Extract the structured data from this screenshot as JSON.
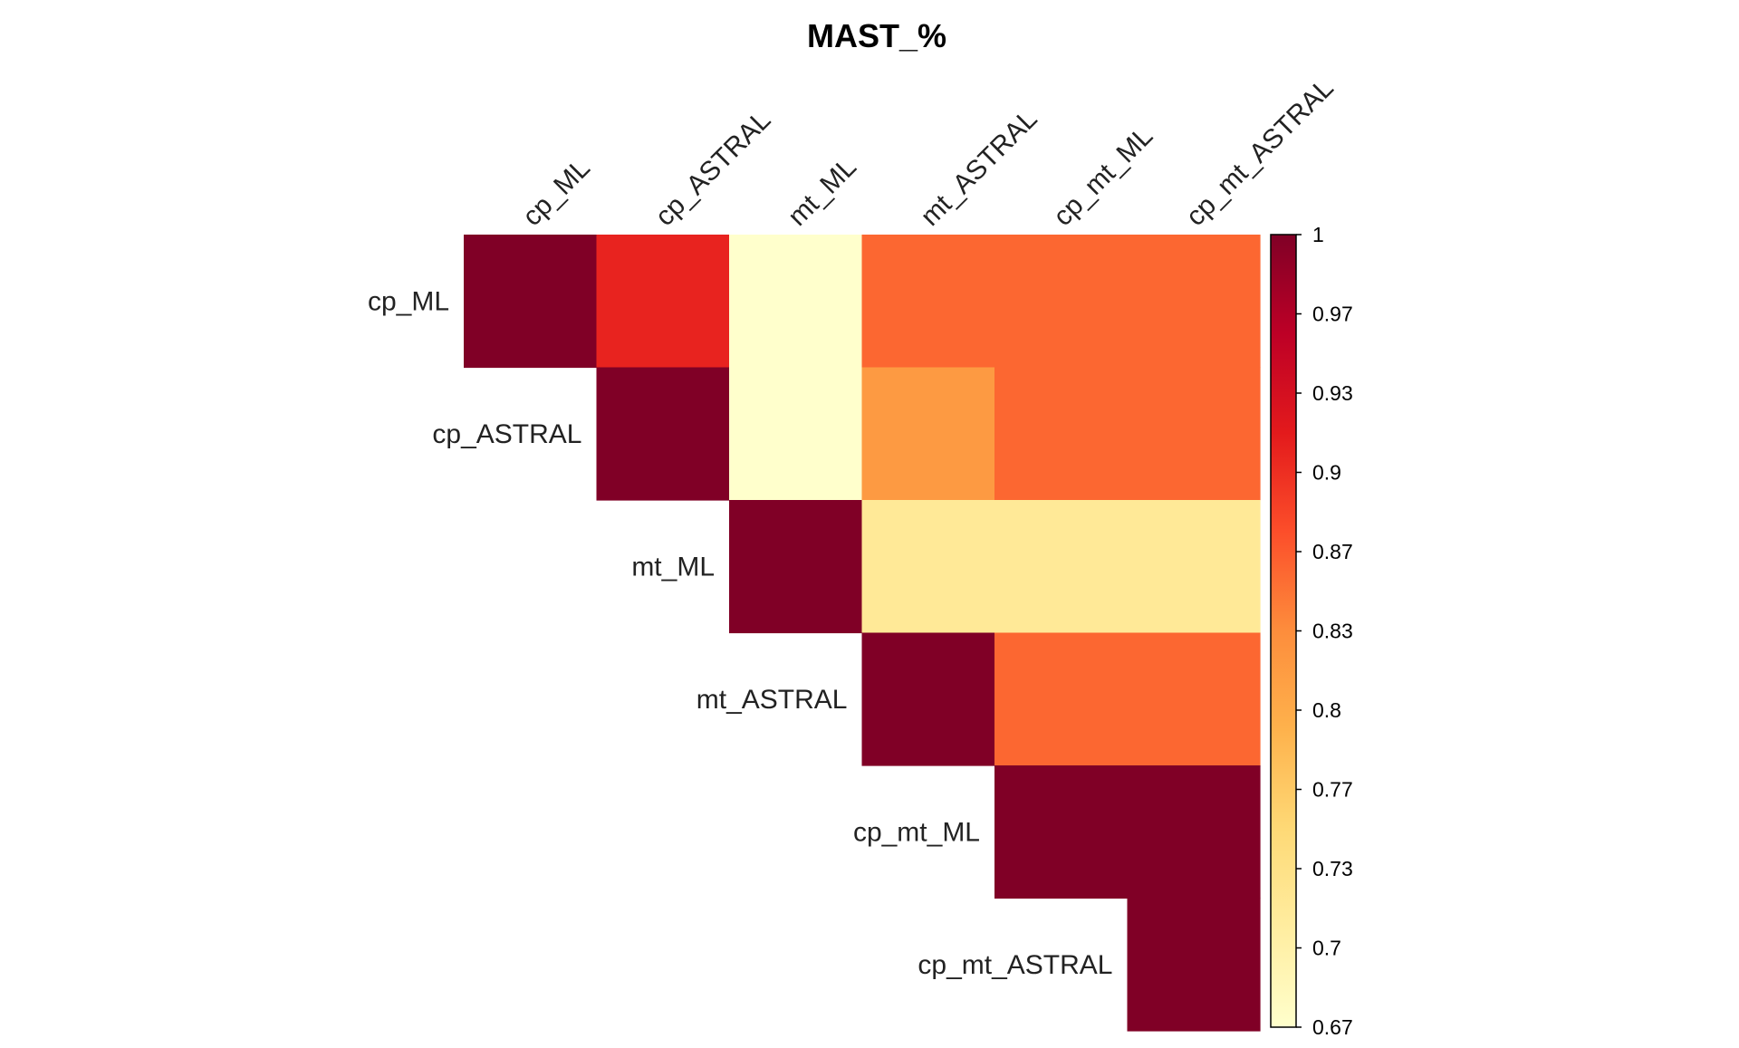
{
  "chart_data": {
    "type": "heatmap",
    "title": "MAST_%",
    "layout": "upper-triangle",
    "row_labels": [
      "cp_ML",
      "cp_ASTRAL",
      "mt_ML",
      "mt_ASTRAL",
      "cp_mt_ML",
      "cp_mt_ASTRAL"
    ],
    "col_labels": [
      "cp_ML",
      "cp_ASTRAL",
      "mt_ML",
      "mt_ASTRAL",
      "cp_mt_ML",
      "cp_mt_ASTRAL"
    ],
    "values": [
      [
        1,
        0.91,
        0.67,
        0.86,
        0.86,
        0.86
      ],
      [
        null,
        1,
        0.67,
        0.82,
        0.86,
        0.86
      ],
      [
        null,
        null,
        1,
        0.72,
        0.72,
        0.72
      ],
      [
        null,
        null,
        null,
        1,
        0.86,
        0.86
      ],
      [
        null,
        null,
        null,
        null,
        1,
        1
      ],
      [
        null,
        null,
        null,
        null,
        null,
        1
      ]
    ],
    "colorbar": {
      "min": 0.67,
      "max": 1,
      "ticks": [
        1,
        0.97,
        0.93,
        0.9,
        0.87,
        0.83,
        0.8,
        0.77,
        0.73,
        0.7,
        0.67
      ],
      "colormap": [
        "#ffffcc",
        "#ffeda0",
        "#fed976",
        "#feb24c",
        "#fd8d3c",
        "#fc4e2a",
        "#e31a1c",
        "#bd0026",
        "#800026"
      ]
    }
  }
}
